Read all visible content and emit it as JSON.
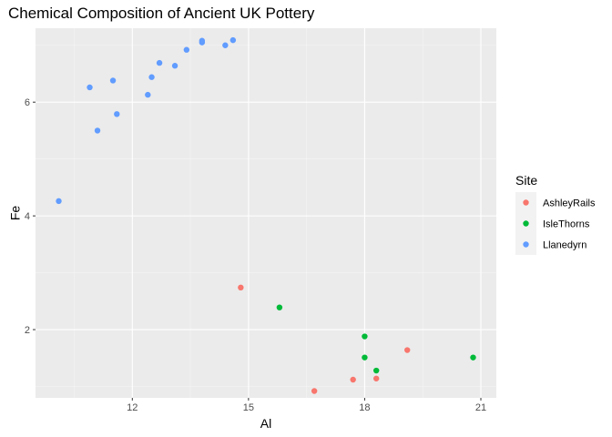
{
  "chart_data": {
    "type": "scatter",
    "title": "Chemical Composition of Ancient UK Pottery",
    "xlabel": "Al",
    "ylabel": "Fe",
    "xlim": [
      9.5,
      21.4
    ],
    "ylim": [
      0.8,
      7.3
    ],
    "x_ticks": [
      12,
      15,
      18,
      21
    ],
    "y_ticks": [
      2,
      4,
      6
    ],
    "grid": true,
    "legend": {
      "title": "Site",
      "position": "right"
    },
    "series": [
      {
        "name": "AshleyRails",
        "color": "#F8766D",
        "points": [
          {
            "x": 14.8,
            "y": 2.74
          },
          {
            "x": 16.7,
            "y": 0.92
          },
          {
            "x": 17.7,
            "y": 1.12
          },
          {
            "x": 18.3,
            "y": 1.14
          },
          {
            "x": 19.1,
            "y": 1.64
          }
        ]
      },
      {
        "name": "IsleThorns",
        "color": "#00BA38",
        "points": [
          {
            "x": 15.8,
            "y": 2.39
          },
          {
            "x": 18.0,
            "y": 1.88
          },
          {
            "x": 18.0,
            "y": 1.51
          },
          {
            "x": 18.3,
            "y": 1.28
          },
          {
            "x": 20.8,
            "y": 1.51
          }
        ]
      },
      {
        "name": "Llanedyrn",
        "color": "#619CFF",
        "points": [
          {
            "x": 10.1,
            "y": 4.26
          },
          {
            "x": 10.9,
            "y": 6.26
          },
          {
            "x": 11.1,
            "y": 5.5
          },
          {
            "x": 11.5,
            "y": 6.38
          },
          {
            "x": 11.6,
            "y": 5.79
          },
          {
            "x": 12.4,
            "y": 6.13
          },
          {
            "x": 12.5,
            "y": 6.44
          },
          {
            "x": 12.7,
            "y": 6.69
          },
          {
            "x": 13.1,
            "y": 6.64
          },
          {
            "x": 13.4,
            "y": 6.92
          },
          {
            "x": 13.8,
            "y": 7.05
          },
          {
            "x": 13.8,
            "y": 7.08
          },
          {
            "x": 14.4,
            "y": 7.0
          },
          {
            "x": 14.6,
            "y": 7.09
          }
        ]
      }
    ]
  }
}
